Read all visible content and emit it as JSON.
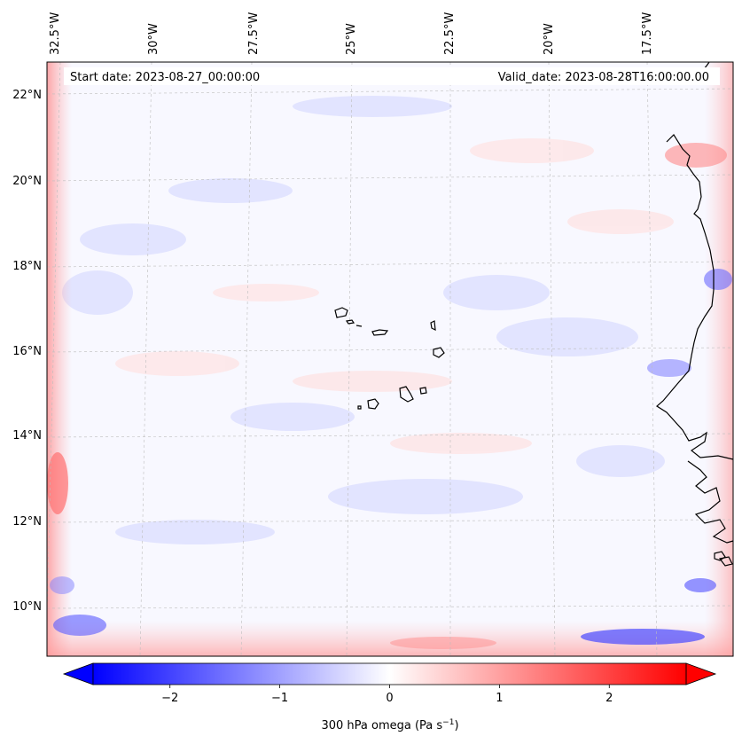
{
  "map": {
    "start_date_label": "Start date: 2023-08-27_00:00:00",
    "valid_date_label": "Valid_date: 2023-08-28T16:00:00.00",
    "lon_labels": [
      "32.5°W",
      "30°W",
      "27.5°W",
      "25°W",
      "22.5°W",
      "20°W",
      "17.5°W"
    ],
    "lat_labels": [
      "22°N",
      "20°N",
      "18°N",
      "16°N",
      "14°N",
      "12°N",
      "10°N"
    ],
    "gridlines": true,
    "features": [
      "Cabo Verde islands coastline",
      "West African coastline"
    ]
  },
  "colorbar": {
    "label_main": "300 hPa omega (Pa s",
    "label_sup": "−1",
    "label_end": ")",
    "ticks": [
      "−2",
      "−1",
      "0",
      "1",
      "2"
    ],
    "tick_values": [
      -2,
      -1,
      0,
      1,
      2
    ],
    "range": [
      -2.7,
      2.7
    ],
    "colormap": "bwr",
    "extend": "both",
    "colors": {
      "negative": "#0000ff",
      "zero": "#ffffff",
      "positive": "#ff0000"
    }
  }
}
